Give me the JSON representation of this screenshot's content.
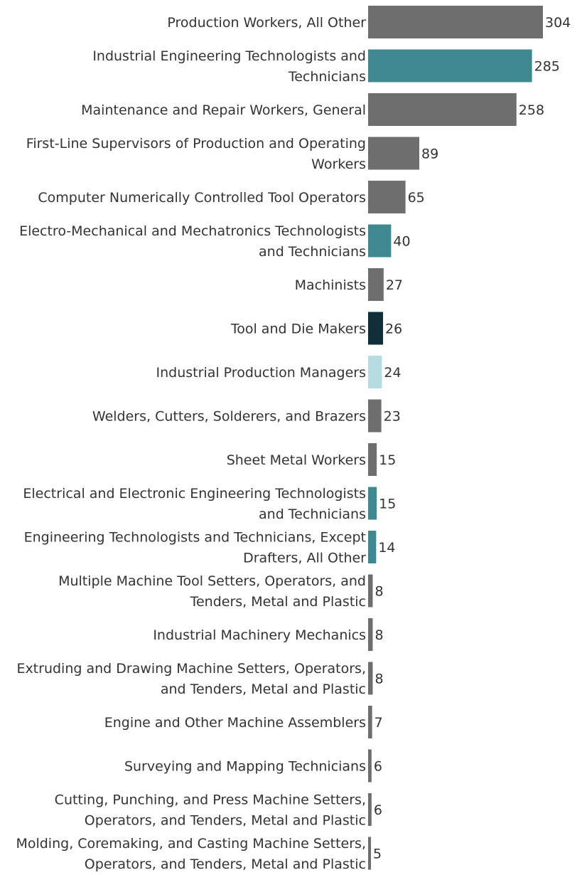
{
  "chart_data": {
    "type": "bar",
    "orientation": "horizontal",
    "title": "",
    "xlabel": "",
    "ylabel": "",
    "xlim": [
      0,
      304
    ],
    "grid": false,
    "legend": "none",
    "colors": {
      "gray": "#6e6e6e",
      "teal": "#3f8890",
      "dark": "#0e2f3a",
      "light": "#b6dbe0"
    },
    "bars": [
      {
        "lines": [
          "Production Workers, All Other"
        ],
        "value": 304,
        "color": "gray"
      },
      {
        "lines": [
          "Industrial Engineering Technologists and",
          "Technicians"
        ],
        "value": 285,
        "color": "teal"
      },
      {
        "lines": [
          "Maintenance and Repair Workers, General"
        ],
        "value": 258,
        "color": "gray"
      },
      {
        "lines": [
          "First-Line Supervisors of Production and Operating",
          "Workers"
        ],
        "value": 89,
        "color": "gray"
      },
      {
        "lines": [
          "Computer Numerically Controlled Tool Operators"
        ],
        "value": 65,
        "color": "gray"
      },
      {
        "lines": [
          "Electro-Mechanical and Mechatronics Technologists",
          "and Technicians"
        ],
        "value": 40,
        "color": "teal"
      },
      {
        "lines": [
          "Machinists"
        ],
        "value": 27,
        "color": "gray"
      },
      {
        "lines": [
          "Tool and Die Makers"
        ],
        "value": 26,
        "color": "dark"
      },
      {
        "lines": [
          "Industrial Production Managers"
        ],
        "value": 24,
        "color": "light"
      },
      {
        "lines": [
          "Welders, Cutters, Solderers, and Brazers"
        ],
        "value": 23,
        "color": "gray"
      },
      {
        "lines": [
          "Sheet Metal Workers"
        ],
        "value": 15,
        "color": "gray"
      },
      {
        "lines": [
          "Electrical and Electronic Engineering Technologists",
          "and Technicians"
        ],
        "value": 15,
        "color": "teal"
      },
      {
        "lines": [
          "Engineering Technologists and Technicians, Except",
          "Drafters, All Other"
        ],
        "value": 14,
        "color": "teal"
      },
      {
        "lines": [
          "Multiple Machine Tool Setters, Operators, and",
          "Tenders, Metal and Plastic"
        ],
        "value": 8,
        "color": "gray"
      },
      {
        "lines": [
          "Industrial Machinery Mechanics"
        ],
        "value": 8,
        "color": "gray"
      },
      {
        "lines": [
          "Extruding and Drawing Machine Setters, Operators,",
          "and Tenders, Metal and Plastic"
        ],
        "value": 8,
        "color": "gray"
      },
      {
        "lines": [
          "Engine and Other Machine Assemblers"
        ],
        "value": 7,
        "color": "gray"
      },
      {
        "lines": [
          "Surveying and Mapping Technicians"
        ],
        "value": 6,
        "color": "gray"
      },
      {
        "lines": [
          "Cutting, Punching, and Press Machine Setters,",
          "Operators, and Tenders, Metal and Plastic"
        ],
        "value": 6,
        "color": "gray"
      },
      {
        "lines": [
          "Molding, Coremaking, and Casting Machine Setters,",
          "Operators, and Tenders, Metal and Plastic"
        ],
        "value": 5,
        "color": "gray"
      }
    ]
  }
}
